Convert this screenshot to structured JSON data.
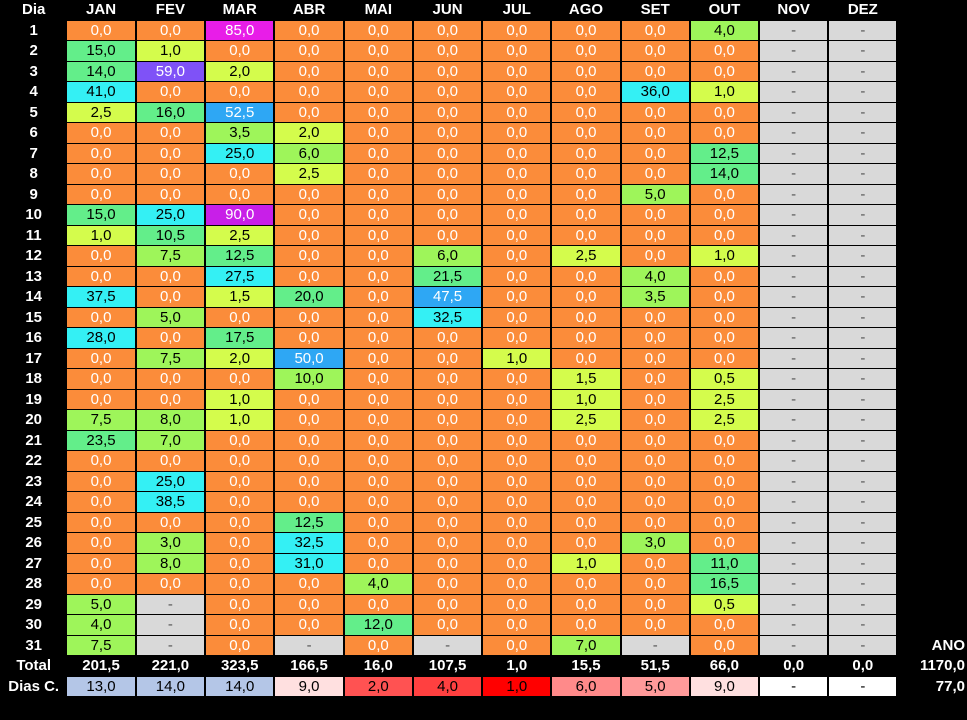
{
  "header": {
    "dia_label": "Dia",
    "months": [
      "JAN",
      "FEV",
      "MAR",
      "ABR",
      "MAI",
      "JUN",
      "JUL",
      "AGO",
      "SET",
      "OUT",
      "NOV",
      "DEZ"
    ]
  },
  "days": [
    {
      "d": "1",
      "v": [
        "0,0",
        "0,0",
        "85,0",
        "0,0",
        "0,0",
        "0,0",
        "0,0",
        "0,0",
        "0,0",
        "4,0",
        "-",
        "-"
      ]
    },
    {
      "d": "2",
      "v": [
        "15,0",
        "1,0",
        "0,0",
        "0,0",
        "0,0",
        "0,0",
        "0,0",
        "0,0",
        "0,0",
        "0,0",
        "-",
        "-"
      ]
    },
    {
      "d": "3",
      "v": [
        "14,0",
        "59,0",
        "2,0",
        "0,0",
        "0,0",
        "0,0",
        "0,0",
        "0,0",
        "0,0",
        "0,0",
        "-",
        "-"
      ]
    },
    {
      "d": "4",
      "v": [
        "41,0",
        "0,0",
        "0,0",
        "0,0",
        "0,0",
        "0,0",
        "0,0",
        "0,0",
        "36,0",
        "1,0",
        "-",
        "-"
      ]
    },
    {
      "d": "5",
      "v": [
        "2,5",
        "16,0",
        "52,5",
        "0,0",
        "0,0",
        "0,0",
        "0,0",
        "0,0",
        "0,0",
        "0,0",
        "-",
        "-"
      ]
    },
    {
      "d": "6",
      "v": [
        "0,0",
        "0,0",
        "3,5",
        "2,0",
        "0,0",
        "0,0",
        "0,0",
        "0,0",
        "0,0",
        "0,0",
        "-",
        "-"
      ]
    },
    {
      "d": "7",
      "v": [
        "0,0",
        "0,0",
        "25,0",
        "6,0",
        "0,0",
        "0,0",
        "0,0",
        "0,0",
        "0,0",
        "12,5",
        "-",
        "-"
      ]
    },
    {
      "d": "8",
      "v": [
        "0,0",
        "0,0",
        "0,0",
        "2,5",
        "0,0",
        "0,0",
        "0,0",
        "0,0",
        "0,0",
        "14,0",
        "-",
        "-"
      ]
    },
    {
      "d": "9",
      "v": [
        "0,0",
        "0,0",
        "0,0",
        "0,0",
        "0,0",
        "0,0",
        "0,0",
        "0,0",
        "5,0",
        "0,0",
        "-",
        "-"
      ]
    },
    {
      "d": "10",
      "v": [
        "15,0",
        "25,0",
        "90,0",
        "0,0",
        "0,0",
        "0,0",
        "0,0",
        "0,0",
        "0,0",
        "0,0",
        "-",
        "-"
      ]
    },
    {
      "d": "11",
      "v": [
        "1,0",
        "10,5",
        "2,5",
        "0,0",
        "0,0",
        "0,0",
        "0,0",
        "0,0",
        "0,0",
        "0,0",
        "-",
        "-"
      ]
    },
    {
      "d": "12",
      "v": [
        "0,0",
        "7,5",
        "12,5",
        "0,0",
        "0,0",
        "6,0",
        "0,0",
        "2,5",
        "0,0",
        "1,0",
        "-",
        "-"
      ]
    },
    {
      "d": "13",
      "v": [
        "0,0",
        "0,0",
        "27,5",
        "0,0",
        "0,0",
        "21,5",
        "0,0",
        "0,0",
        "4,0",
        "0,0",
        "-",
        "-"
      ]
    },
    {
      "d": "14",
      "v": [
        "37,5",
        "0,0",
        "1,5",
        "20,0",
        "0,0",
        "47,5",
        "0,0",
        "0,0",
        "3,5",
        "0,0",
        "-",
        "-"
      ]
    },
    {
      "d": "15",
      "v": [
        "0,0",
        "5,0",
        "0,0",
        "0,0",
        "0,0",
        "32,5",
        "0,0",
        "0,0",
        "0,0",
        "0,0",
        "-",
        "-"
      ]
    },
    {
      "d": "16",
      "v": [
        "28,0",
        "0,0",
        "17,5",
        "0,0",
        "0,0",
        "0,0",
        "0,0",
        "0,0",
        "0,0",
        "0,0",
        "-",
        "-"
      ]
    },
    {
      "d": "17",
      "v": [
        "0,0",
        "7,5",
        "2,0",
        "50,0",
        "0,0",
        "0,0",
        "1,0",
        "0,0",
        "0,0",
        "0,0",
        "-",
        "-"
      ]
    },
    {
      "d": "18",
      "v": [
        "0,0",
        "0,0",
        "0,0",
        "10,0",
        "0,0",
        "0,0",
        "0,0",
        "1,5",
        "0,0",
        "0,5",
        "-",
        "-"
      ]
    },
    {
      "d": "19",
      "v": [
        "0,0",
        "0,0",
        "1,0",
        "0,0",
        "0,0",
        "0,0",
        "0,0",
        "1,0",
        "0,0",
        "2,5",
        "-",
        "-"
      ]
    },
    {
      "d": "20",
      "v": [
        "7,5",
        "8,0",
        "1,0",
        "0,0",
        "0,0",
        "0,0",
        "0,0",
        "2,5",
        "0,0",
        "2,5",
        "-",
        "-"
      ]
    },
    {
      "d": "21",
      "v": [
        "23,5",
        "7,0",
        "0,0",
        "0,0",
        "0,0",
        "0,0",
        "0,0",
        "0,0",
        "0,0",
        "0,0",
        "-",
        "-"
      ]
    },
    {
      "d": "22",
      "v": [
        "0,0",
        "0,0",
        "0,0",
        "0,0",
        "0,0",
        "0,0",
        "0,0",
        "0,0",
        "0,0",
        "0,0",
        "-",
        "-"
      ]
    },
    {
      "d": "23",
      "v": [
        "0,0",
        "25,0",
        "0,0",
        "0,0",
        "0,0",
        "0,0",
        "0,0",
        "0,0",
        "0,0",
        "0,0",
        "-",
        "-"
      ]
    },
    {
      "d": "24",
      "v": [
        "0,0",
        "38,5",
        "0,0",
        "0,0",
        "0,0",
        "0,0",
        "0,0",
        "0,0",
        "0,0",
        "0,0",
        "-",
        "-"
      ]
    },
    {
      "d": "25",
      "v": [
        "0,0",
        "0,0",
        "0,0",
        "12,5",
        "0,0",
        "0,0",
        "0,0",
        "0,0",
        "0,0",
        "0,0",
        "-",
        "-"
      ]
    },
    {
      "d": "26",
      "v": [
        "0,0",
        "3,0",
        "0,0",
        "32,5",
        "0,0",
        "0,0",
        "0,0",
        "0,0",
        "3,0",
        "0,0",
        "-",
        "-"
      ]
    },
    {
      "d": "27",
      "v": [
        "0,0",
        "8,0",
        "0,0",
        "31,0",
        "0,0",
        "0,0",
        "0,0",
        "1,0",
        "0,0",
        "11,0",
        "-",
        "-"
      ]
    },
    {
      "d": "28",
      "v": [
        "0,0",
        "0,0",
        "0,0",
        "0,0",
        "4,0",
        "0,0",
        "0,0",
        "0,0",
        "0,0",
        "16,5",
        "-",
        "-"
      ]
    },
    {
      "d": "29",
      "v": [
        "5,0",
        "-",
        "0,0",
        "0,0",
        "0,0",
        "0,0",
        "0,0",
        "0,0",
        "0,0",
        "0,5",
        "-",
        "-"
      ]
    },
    {
      "d": "30",
      "v": [
        "4,0",
        "-",
        "0,0",
        "0,0",
        "12,0",
        "0,0",
        "0,0",
        "0,0",
        "0,0",
        "0,0",
        "-",
        "-"
      ]
    },
    {
      "d": "31",
      "v": [
        "7,5",
        "-",
        "0,0",
        "-",
        "0,0",
        "-",
        "0,0",
        "7,0",
        "-",
        "0,0",
        "-",
        "-"
      ]
    }
  ],
  "ano_label": "ANO",
  "total": {
    "label": "Total",
    "values": [
      "201,5",
      "221,0",
      "323,5",
      "166,5",
      "16,0",
      "107,5",
      "1,0",
      "15,5",
      "51,5",
      "66,0",
      "0,0",
      "0,0"
    ],
    "ano": "1170,0"
  },
  "dias_chuva": {
    "label": "Dias C.",
    "values": [
      "13,0",
      "14,0",
      "14,0",
      "9,0",
      "2,0",
      "4,0",
      "1,0",
      "6,0",
      "5,0",
      "9,0",
      "-",
      "-"
    ],
    "ano": "77,0"
  }
}
